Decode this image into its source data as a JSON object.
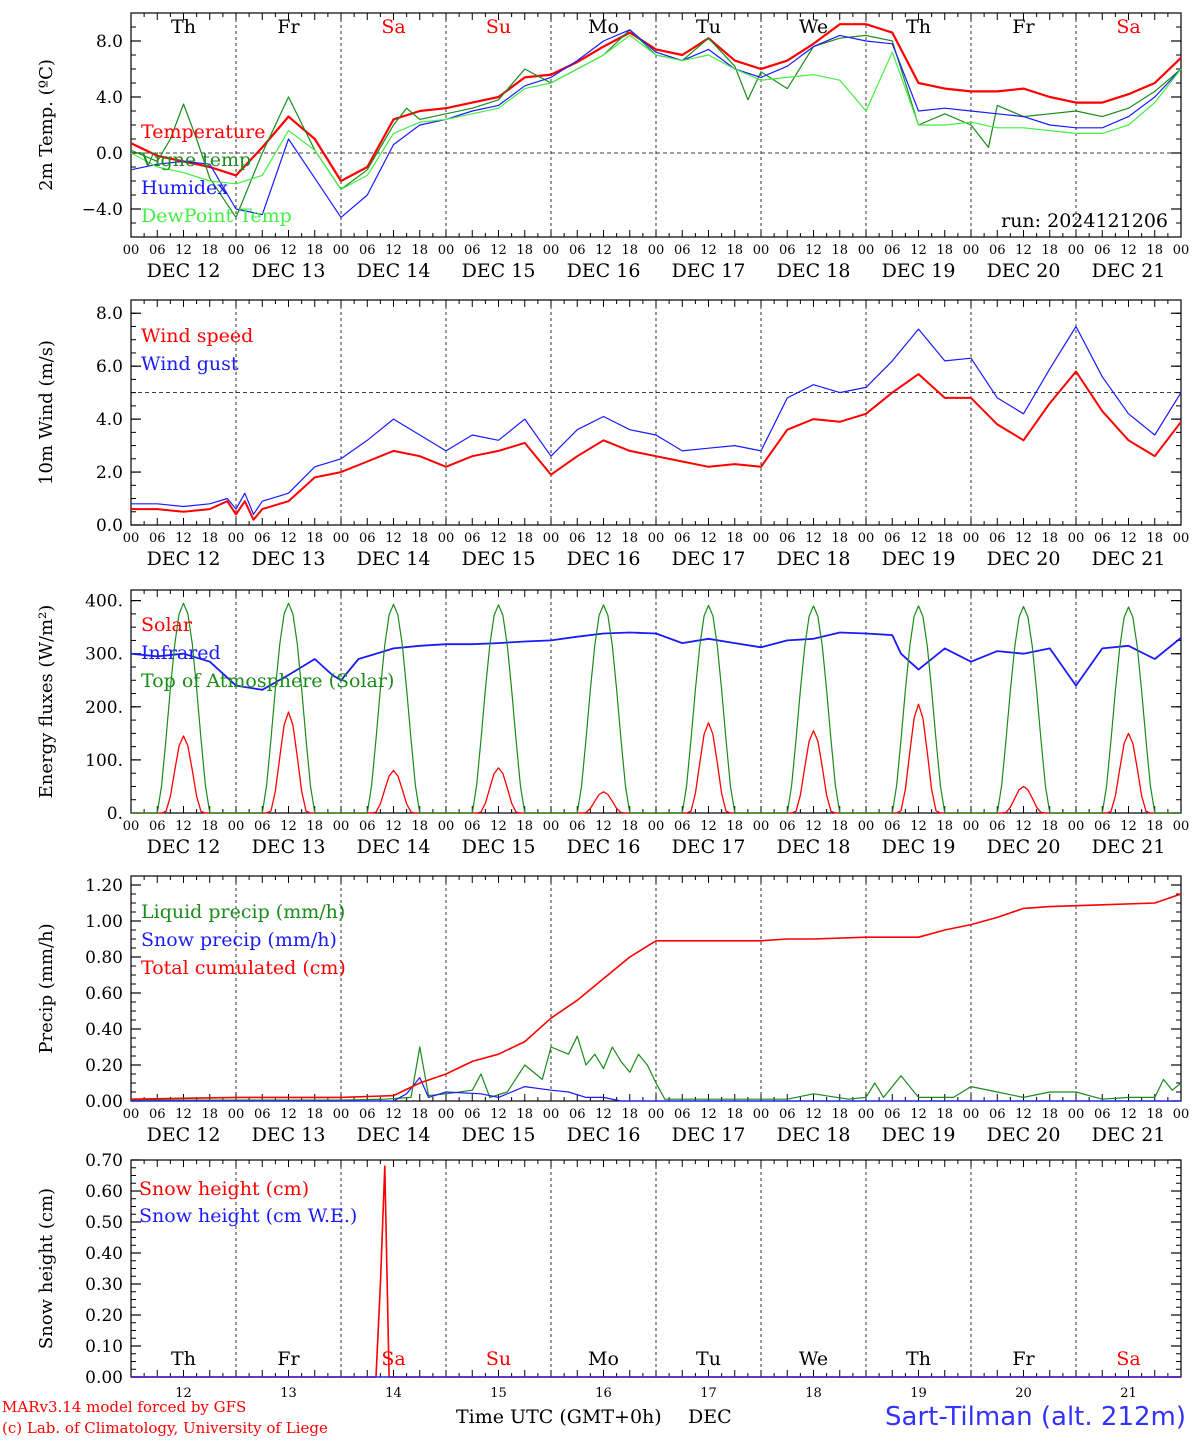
{
  "run_label": "run: 2024121206",
  "footer": {
    "model": "MARv3.14 model forced by GFS",
    "lab": "(c) Lab. of Climatology, University of Liege",
    "xaxis": "Time UTC (GMT+0h)",
    "month": "DEC",
    "station": "Sart-Tilman (alt. 212m)"
  },
  "weekdays": [
    {
      "label": "Th",
      "color": "#000000"
    },
    {
      "label": "Fr",
      "color": "#000000"
    },
    {
      "label": "Sa",
      "color": "#ff0000"
    },
    {
      "label": "Su",
      "color": "#ff0000"
    },
    {
      "label": "Mo",
      "color": "#000000"
    },
    {
      "label": "Tu",
      "color": "#000000"
    },
    {
      "label": "We",
      "color": "#000000"
    },
    {
      "label": "Th",
      "color": "#000000"
    },
    {
      "label": "Fr",
      "color": "#000000"
    },
    {
      "label": "Sa",
      "color": "#ff0000"
    }
  ],
  "date_labels": [
    "DEC 12",
    "DEC 13",
    "DEC 14",
    "DEC 15",
    "DEC 16",
    "DEC 17",
    "DEC 18",
    "DEC 19",
    "DEC 20",
    "DEC 21"
  ],
  "day_numbers": [
    "12",
    "13",
    "14",
    "15",
    "16",
    "17",
    "18",
    "19",
    "20",
    "21"
  ],
  "hour_ticks": [
    "00",
    "06",
    "12",
    "18"
  ],
  "chart_data": [
    {
      "type": "line",
      "ylabel": "2m Temp. (ºC)",
      "ylim": [
        -6.0,
        10.0
      ],
      "yticks": [
        -4.0,
        0.0,
        4.0,
        8.0
      ],
      "ytick_labels": [
        "−4.0",
        "0.0",
        "4.0",
        "8.0"
      ],
      "ref_line": 0.0,
      "xlim": [
        0,
        240
      ],
      "series": [
        {
          "name": "Temperature",
          "color": "#ff0000",
          "width": 2.2,
          "x": [
            0,
            6,
            12,
            18,
            24,
            30,
            36,
            42,
            48,
            54,
            60,
            66,
            72,
            78,
            84,
            90,
            96,
            102,
            108,
            114,
            120,
            126,
            132,
            138,
            144,
            150,
            156,
            162,
            168,
            174,
            180,
            186,
            192,
            198,
            204,
            210,
            216,
            222,
            228,
            234,
            240
          ],
          "y": [
            0.7,
            -0.2,
            -0.6,
            -1.0,
            -1.6,
            0.4,
            2.6,
            1.0,
            -2.0,
            -1.0,
            2.4,
            3.0,
            3.2,
            3.6,
            4.0,
            5.4,
            5.6,
            6.5,
            7.6,
            8.6,
            7.4,
            7.0,
            8.2,
            6.6,
            6.0,
            6.6,
            7.8,
            9.2,
            9.2,
            8.6,
            5.0,
            4.6,
            4.4,
            4.4,
            4.6,
            4.0,
            3.6,
            3.6,
            4.2,
            5.0,
            6.8
          ]
        },
        {
          "name": "Vigne temp",
          "color": "#1a8c1a",
          "width": 1.2,
          "x": [
            0,
            6,
            9,
            12,
            15,
            18,
            24,
            30,
            36,
            42,
            48,
            54,
            60,
            63,
            66,
            72,
            78,
            84,
            90,
            96,
            102,
            108,
            114,
            120,
            126,
            132,
            138,
            141,
            144,
            150,
            156,
            162,
            168,
            174,
            180,
            186,
            192,
            196,
            198,
            204,
            210,
            216,
            222,
            228,
            234,
            240
          ],
          "y": [
            0.2,
            -0.6,
            1.0,
            3.5,
            1.0,
            -1.8,
            -4.6,
            0.0,
            4.0,
            0.2,
            -2.6,
            -1.2,
            2.0,
            3.2,
            2.4,
            2.8,
            3.2,
            3.8,
            6.0,
            5.0,
            6.0,
            7.0,
            8.8,
            7.0,
            6.6,
            8.2,
            6.2,
            3.8,
            5.8,
            4.6,
            7.6,
            8.2,
            8.4,
            8.0,
            2.0,
            2.8,
            2.0,
            0.4,
            3.4,
            2.6,
            2.8,
            3.0,
            2.6,
            3.2,
            4.4,
            6.0
          ]
        },
        {
          "name": "Humidex",
          "color": "#1a1aff",
          "width": 1.2,
          "x": [
            0,
            6,
            12,
            18,
            24,
            30,
            36,
            42,
            48,
            54,
            60,
            66,
            72,
            78,
            84,
            90,
            96,
            102,
            108,
            114,
            120,
            126,
            132,
            138,
            144,
            150,
            156,
            162,
            168,
            174,
            180,
            186,
            192,
            198,
            204,
            210,
            216,
            222,
            228,
            234,
            240
          ],
          "y": [
            -1.2,
            -0.8,
            -0.6,
            -0.8,
            -4.0,
            -4.4,
            1.0,
            -1.8,
            -4.6,
            -3.0,
            0.6,
            2.0,
            2.4,
            3.0,
            3.4,
            4.8,
            5.4,
            6.6,
            8.0,
            8.8,
            7.2,
            6.6,
            7.4,
            6.0,
            5.4,
            6.2,
            7.6,
            8.4,
            8.0,
            7.8,
            3.0,
            3.2,
            3.0,
            2.8,
            2.6,
            2.0,
            1.8,
            1.8,
            2.6,
            4.0,
            6.0
          ]
        },
        {
          "name": "DewPoint Temp",
          "color": "#44ee44",
          "width": 1.2,
          "x": [
            0,
            6,
            12,
            18,
            24,
            30,
            36,
            42,
            48,
            54,
            60,
            66,
            72,
            78,
            84,
            90,
            96,
            102,
            108,
            114,
            120,
            126,
            132,
            138,
            144,
            150,
            156,
            162,
            168,
            174,
            180,
            186,
            192,
            198,
            204,
            210,
            216,
            222,
            228,
            234,
            240
          ],
          "y": [
            0.0,
            -1.0,
            -1.4,
            -2.0,
            -2.2,
            -1.6,
            1.6,
            0.2,
            -2.6,
            -1.6,
            1.4,
            2.2,
            2.4,
            2.8,
            3.2,
            4.6,
            5.0,
            6.0,
            7.0,
            8.4,
            7.0,
            6.6,
            7.0,
            6.0,
            5.2,
            5.4,
            5.6,
            5.2,
            3.0,
            7.2,
            2.0,
            2.0,
            2.2,
            1.8,
            1.8,
            1.6,
            1.4,
            1.4,
            2.0,
            3.6,
            6.0
          ]
        }
      ]
    },
    {
      "type": "line",
      "ylabel": "10m Wind (m/s)",
      "ylim": [
        0.0,
        8.5
      ],
      "yticks": [
        0.0,
        2.0,
        4.0,
        6.0,
        8.0
      ],
      "ytick_labels": [
        "0.0",
        "2.0",
        "4.0",
        "6.0",
        "8.0"
      ],
      "ref_line": 5.0,
      "xlim": [
        0,
        240
      ],
      "series": [
        {
          "name": "Wind speed",
          "color": "#ff0000",
          "width": 2.0,
          "x": [
            0,
            6,
            12,
            18,
            22,
            24,
            26,
            28,
            30,
            34,
            36,
            42,
            48,
            54,
            60,
            66,
            72,
            78,
            84,
            90,
            96,
            102,
            108,
            114,
            120,
            126,
            132,
            138,
            144,
            150,
            156,
            162,
            168,
            174,
            180,
            186,
            192,
            198,
            204,
            210,
            216,
            222,
            228,
            234,
            240
          ],
          "y": [
            0.6,
            0.6,
            0.5,
            0.6,
            0.9,
            0.4,
            0.9,
            0.2,
            0.6,
            0.8,
            0.9,
            1.8,
            2.0,
            2.4,
            2.8,
            2.6,
            2.2,
            2.6,
            2.8,
            3.1,
            1.9,
            2.6,
            3.2,
            2.8,
            2.6,
            2.4,
            2.2,
            2.3,
            2.2,
            3.6,
            4.0,
            3.9,
            4.2,
            5.0,
            5.7,
            4.8,
            4.8,
            3.8,
            3.2,
            4.6,
            5.8,
            4.3,
            3.2,
            2.6,
            3.9
          ]
        },
        {
          "name": "Wind gust",
          "color": "#1a1aff",
          "width": 1.2,
          "x": [
            0,
            6,
            12,
            18,
            22,
            24,
            26,
            28,
            30,
            34,
            36,
            42,
            48,
            54,
            60,
            66,
            72,
            78,
            84,
            90,
            96,
            102,
            108,
            114,
            120,
            126,
            132,
            138,
            144,
            150,
            156,
            162,
            168,
            174,
            180,
            186,
            192,
            198,
            204,
            210,
            216,
            222,
            228,
            234,
            240
          ],
          "y": [
            0.8,
            0.8,
            0.7,
            0.8,
            1.0,
            0.6,
            1.2,
            0.4,
            0.9,
            1.1,
            1.2,
            2.2,
            2.5,
            3.2,
            4.0,
            3.4,
            2.8,
            3.4,
            3.2,
            4.0,
            2.6,
            3.6,
            4.1,
            3.6,
            3.4,
            2.8,
            2.9,
            3.0,
            2.8,
            4.8,
            5.3,
            5.0,
            5.2,
            6.2,
            7.4,
            6.2,
            6.3,
            4.8,
            4.2,
            5.9,
            7.5,
            5.6,
            4.2,
            3.4,
            5.0
          ]
        }
      ]
    },
    {
      "type": "line",
      "ylabel": "Energy fluxes (W/m²)",
      "ylim": [
        0,
        420
      ],
      "yticks": [
        0,
        100,
        200,
        300,
        400
      ],
      "ytick_labels": [
        "0.",
        "100.",
        "200.",
        "300.",
        "400."
      ],
      "xlim": [
        0,
        240
      ],
      "series": [
        {
          "name": "Solar",
          "color": "#ff0000",
          "width": 1.3,
          "peaks": [
            145,
            190,
            80,
            85,
            40,
            170,
            155,
            205,
            50,
            150
          ]
        },
        {
          "name": "Infrared",
          "color": "#1a1aff",
          "width": 1.8,
          "x": [
            0,
            6,
            12,
            18,
            24,
            30,
            36,
            42,
            46,
            48,
            52,
            60,
            66,
            72,
            78,
            84,
            90,
            96,
            102,
            108,
            114,
            120,
            126,
            132,
            138,
            144,
            150,
            156,
            162,
            168,
            174,
            176,
            180,
            186,
            192,
            198,
            204,
            210,
            216,
            222,
            228,
            234,
            240
          ],
          "y": [
            300,
            295,
            300,
            285,
            240,
            232,
            260,
            290,
            260,
            250,
            290,
            310,
            315,
            318,
            318,
            320,
            323,
            325,
            332,
            338,
            340,
            338,
            320,
            328,
            320,
            312,
            325,
            328,
            340,
            338,
            335,
            300,
            270,
            310,
            285,
            305,
            300,
            310,
            240,
            310,
            315,
            290,
            330
          ]
        },
        {
          "name": "Top of Atmosphere (Solar)",
          "color": "#1a8c1a",
          "width": 1.2,
          "peaks": [
            395,
            395,
            393,
            392,
            392,
            391,
            390,
            390,
            389,
            388
          ]
        }
      ]
    },
    {
      "type": "line",
      "ylabel": "Precip (mm/h)",
      "ylim": [
        0.0,
        1.25
      ],
      "yticks": [
        0.0,
        0.2,
        0.4,
        0.6,
        0.8,
        1.0,
        1.2
      ],
      "ytick_labels": [
        "0.00",
        "0.20",
        "0.40",
        "0.60",
        "0.80",
        "1.00",
        "1.20"
      ],
      "xlim": [
        0,
        240
      ],
      "series": [
        {
          "name": "Liquid precip (mm/h)",
          "color": "#1a8c1a",
          "width": 1.2,
          "x": [
            0,
            48,
            58,
            64,
            66,
            68,
            72,
            78,
            80,
            82,
            86,
            90,
            94,
            96,
            100,
            102,
            104,
            106,
            108,
            110,
            112,
            114,
            116,
            118,
            120,
            122,
            144,
            150,
            156,
            164,
            168,
            170,
            172,
            176,
            180,
            184,
            188,
            192,
            198,
            204,
            210,
            216,
            222,
            228,
            234,
            236,
            238,
            240
          ],
          "y": [
            0.005,
            0.005,
            0.01,
            0.02,
            0.3,
            0.03,
            0.04,
            0.06,
            0.15,
            0.02,
            0.05,
            0.2,
            0.12,
            0.3,
            0.26,
            0.36,
            0.2,
            0.26,
            0.18,
            0.3,
            0.22,
            0.16,
            0.26,
            0.2,
            0.1,
            0.01,
            0.01,
            0.01,
            0.04,
            0.01,
            0.02,
            0.1,
            0.02,
            0.14,
            0.02,
            0.02,
            0.02,
            0.08,
            0.05,
            0.02,
            0.05,
            0.05,
            0.01,
            0.02,
            0.02,
            0.12,
            0.06,
            0.1
          ]
        },
        {
          "name": "Snow precip (mm/h)",
          "color": "#1a1aff",
          "width": 1.2,
          "x": [
            0,
            60,
            63,
            66,
            68,
            72,
            80,
            84,
            90,
            96,
            100,
            104,
            108,
            112,
            240
          ],
          "y": [
            0.0,
            0.0,
            0.04,
            0.13,
            0.02,
            0.05,
            0.04,
            0.02,
            0.08,
            0.06,
            0.05,
            0.02,
            0.02,
            0.0,
            0.0
          ]
        },
        {
          "name": "Total cumulated (cm)",
          "color": "#ff0000",
          "width": 1.6,
          "x": [
            0,
            24,
            48,
            60,
            66,
            72,
            78,
            84,
            90,
            96,
            102,
            108,
            114,
            120,
            126,
            132,
            144,
            150,
            156,
            168,
            180,
            186,
            192,
            198,
            204,
            210,
            222,
            234,
            240
          ],
          "y": [
            0.01,
            0.02,
            0.02,
            0.03,
            0.1,
            0.15,
            0.22,
            0.26,
            0.33,
            0.46,
            0.56,
            0.68,
            0.8,
            0.89,
            0.89,
            0.89,
            0.89,
            0.9,
            0.9,
            0.91,
            0.91,
            0.95,
            0.98,
            1.02,
            1.07,
            1.08,
            1.09,
            1.1,
            1.15
          ]
        }
      ]
    },
    {
      "type": "line",
      "ylabel": "Snow height (cm)",
      "ylim": [
        0.0,
        0.7
      ],
      "yticks": [
        0.0,
        0.1,
        0.2,
        0.3,
        0.4,
        0.5,
        0.6,
        0.7
      ],
      "ytick_labels": [
        "0.00",
        "0.10",
        "0.20",
        "0.30",
        "0.40",
        "0.50",
        "0.60",
        "0.70"
      ],
      "xlim": [
        0,
        240
      ],
      "series": [
        {
          "name": "Snow height (cm)",
          "color": "#ff0000",
          "width": 1.6,
          "x": [
            0,
            56,
            57,
            58,
            59,
            240
          ],
          "y": [
            0.0,
            0.0,
            0.3,
            0.68,
            0.0,
            0.0
          ]
        },
        {
          "name": "Snow height (cm W.E.)",
          "color": "#1a1aff",
          "width": 1.2,
          "x": [
            0,
            240
          ],
          "y": [
            0.0,
            0.0
          ]
        }
      ]
    }
  ]
}
